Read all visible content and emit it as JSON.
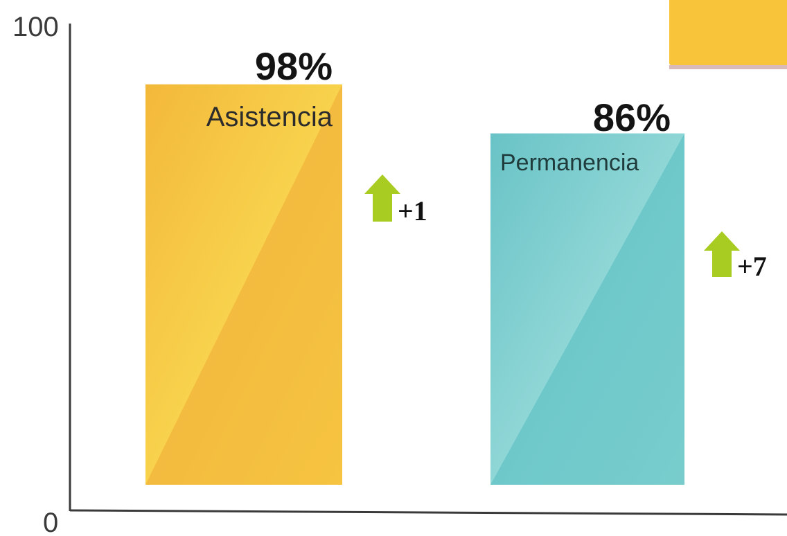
{
  "chart_data": {
    "type": "bar",
    "categories": [
      "Asistencia",
      "Permanencia"
    ],
    "values": [
      98,
      86
    ],
    "value_labels": [
      "98%",
      "86%"
    ],
    "changes": [
      "+1",
      "+7"
    ],
    "ylim": [
      0,
      100
    ],
    "y_ticks": [
      "0",
      "100"
    ],
    "title": "",
    "xlabel": "",
    "ylabel": "",
    "grid": false,
    "colors": {
      "bars": [
        "#f5c244",
        "#7dcfd0"
      ],
      "arrow": "#a9cc22",
      "axis": "#3a3a3a",
      "legend_box": "#f7c43a"
    }
  }
}
